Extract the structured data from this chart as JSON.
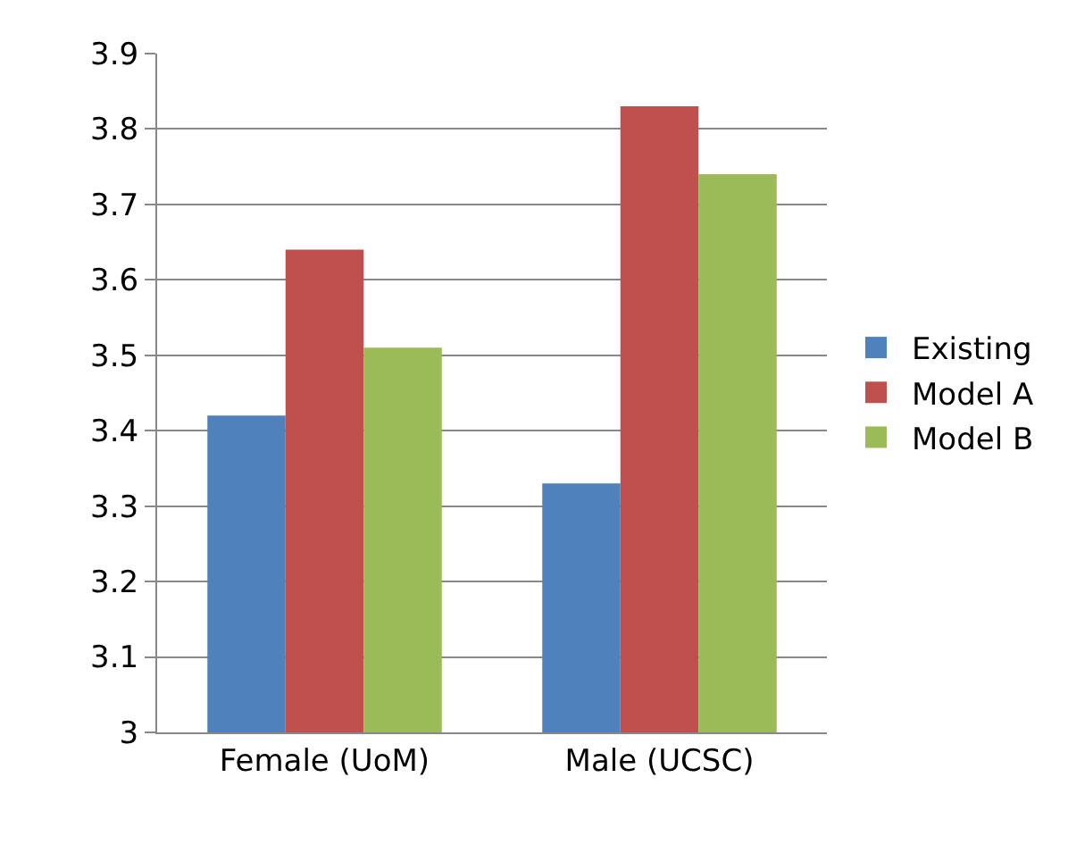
{
  "chart_data": {
    "type": "bar",
    "categories": [
      "Female (UoM)",
      "Male (UCSC)"
    ],
    "series": [
      {
        "name": "Existing",
        "color": "#4f81bd",
        "values": [
          3.42,
          3.33
        ]
      },
      {
        "name": "Model A",
        "color": "#c0504d",
        "values": [
          3.64,
          3.83
        ]
      },
      {
        "name": "Model B",
        "color": "#9bbb59",
        "values": [
          3.51,
          3.74
        ]
      }
    ],
    "ylim": [
      3,
      3.9
    ],
    "yticks": [
      3,
      3.1,
      3.2,
      3.3,
      3.4,
      3.5,
      3.6,
      3.7,
      3.8,
      3.9
    ],
    "grid": "y",
    "legend": "right"
  }
}
